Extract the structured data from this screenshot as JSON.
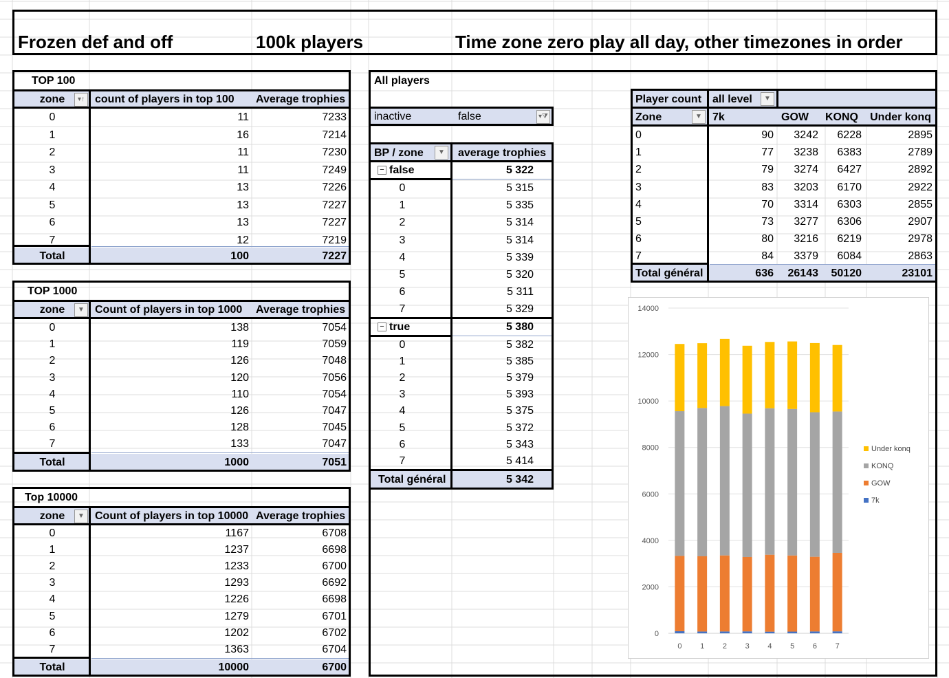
{
  "header": {
    "title_left": "Frozen def and off",
    "title_mid": "100k players",
    "title_right": "Time zone zero play all day, other timezones in order"
  },
  "top100": {
    "title": "TOP 100",
    "col_zone": "zone",
    "col_count": "count of players in top 100",
    "col_avg": "Average trophies",
    "rows": [
      {
        "zone": "0",
        "count": "11",
        "avg": "7233"
      },
      {
        "zone": "1",
        "count": "16",
        "avg": "7214"
      },
      {
        "zone": "2",
        "count": "11",
        "avg": "7230"
      },
      {
        "zone": "3",
        "count": "11",
        "avg": "7249"
      },
      {
        "zone": "4",
        "count": "13",
        "avg": "7226"
      },
      {
        "zone": "5",
        "count": "13",
        "avg": "7227"
      },
      {
        "zone": "6",
        "count": "13",
        "avg": "7227"
      },
      {
        "zone": "7",
        "count": "12",
        "avg": "7219"
      }
    ],
    "total_label": "Total",
    "total_count": "100",
    "total_avg": "7227"
  },
  "top1000": {
    "title": "TOP 1000",
    "col_zone": "zone",
    "col_count": "Count of players in top 1000",
    "col_avg": "Average trophies",
    "rows": [
      {
        "zone": "0",
        "count": "138",
        "avg": "7054"
      },
      {
        "zone": "1",
        "count": "119",
        "avg": "7059"
      },
      {
        "zone": "2",
        "count": "126",
        "avg": "7048"
      },
      {
        "zone": "3",
        "count": "120",
        "avg": "7056"
      },
      {
        "zone": "4",
        "count": "110",
        "avg": "7054"
      },
      {
        "zone": "5",
        "count": "126",
        "avg": "7047"
      },
      {
        "zone": "6",
        "count": "128",
        "avg": "7045"
      },
      {
        "zone": "7",
        "count": "133",
        "avg": "7047"
      }
    ],
    "total_label": "Total",
    "total_count": "1000",
    "total_avg": "7051"
  },
  "top10000": {
    "title": "Top 10000",
    "col_zone": "zone",
    "col_count": "Count of players in top 10000",
    "col_avg": "Average trophies",
    "rows": [
      {
        "zone": "0",
        "count": "1167",
        "avg": "6708"
      },
      {
        "zone": "1",
        "count": "1237",
        "avg": "6698"
      },
      {
        "zone": "2",
        "count": "1233",
        "avg": "6700"
      },
      {
        "zone": "3",
        "count": "1293",
        "avg": "6692"
      },
      {
        "zone": "4",
        "count": "1226",
        "avg": "6698"
      },
      {
        "zone": "5",
        "count": "1279",
        "avg": "6701"
      },
      {
        "zone": "6",
        "count": "1202",
        "avg": "6702"
      },
      {
        "zone": "7",
        "count": "1363",
        "avg": "6704"
      }
    ],
    "total_label": "Total",
    "total_count": "10000",
    "total_avg": "6700"
  },
  "allplayers": {
    "title": "All players",
    "filter_label": "inactive",
    "filter_value": "false",
    "col_bp": "BP / zone",
    "col_avg": "average trophies",
    "group_false": {
      "label": "false",
      "avg": "5 322",
      "rows": [
        {
          "zone": "0",
          "avg": "5 315"
        },
        {
          "zone": "1",
          "avg": "5 335"
        },
        {
          "zone": "2",
          "avg": "5 314"
        },
        {
          "zone": "3",
          "avg": "5 314"
        },
        {
          "zone": "4",
          "avg": "5 339"
        },
        {
          "zone": "5",
          "avg": "5 320"
        },
        {
          "zone": "6",
          "avg": "5 311"
        },
        {
          "zone": "7",
          "avg": "5 329"
        }
      ]
    },
    "group_true": {
      "label": "true",
      "avg": "5 380",
      "rows": [
        {
          "zone": "0",
          "avg": "5 382"
        },
        {
          "zone": "1",
          "avg": "5 385"
        },
        {
          "zone": "2",
          "avg": "5 379"
        },
        {
          "zone": "3",
          "avg": "5 393"
        },
        {
          "zone": "4",
          "avg": "5 375"
        },
        {
          "zone": "5",
          "avg": "5 372"
        },
        {
          "zone": "6",
          "avg": "5 343"
        },
        {
          "zone": "7",
          "avg": "5 414"
        }
      ]
    },
    "total_label": "Total général",
    "total_avg": "5 342"
  },
  "playercount": {
    "title": "Player count",
    "filter_value": "all level",
    "col_zone": "Zone",
    "col_7k": "7k",
    "col_gow": "GOW",
    "col_konq": "KONQ",
    "col_under": "Under konq",
    "rows": [
      {
        "zone": "0",
        "k7": "90",
        "gow": "3242",
        "konq": "6228",
        "under": "2895"
      },
      {
        "zone": "1",
        "k7": "77",
        "gow": "3238",
        "konq": "6383",
        "under": "2789"
      },
      {
        "zone": "2",
        "k7": "79",
        "gow": "3274",
        "konq": "6427",
        "under": "2892"
      },
      {
        "zone": "3",
        "k7": "83",
        "gow": "3203",
        "konq": "6170",
        "under": "2922"
      },
      {
        "zone": "4",
        "k7": "70",
        "gow": "3314",
        "konq": "6303",
        "under": "2855"
      },
      {
        "zone": "5",
        "k7": "73",
        "gow": "3277",
        "konq": "6306",
        "under": "2907"
      },
      {
        "zone": "6",
        "k7": "80",
        "gow": "3216",
        "konq": "6219",
        "under": "2978"
      },
      {
        "zone": "7",
        "k7": "84",
        "gow": "3379",
        "konq": "6084",
        "under": "2863"
      }
    ],
    "total_label": "Total général",
    "total_7k": "636",
    "total_gow": "26143",
    "total_konq": "50120",
    "total_under": "23101"
  },
  "icons": {
    "dropdown": "dropdown-arrow-icon",
    "filter": "filter-icon",
    "sort": "sort-icon",
    "collapse": "collapse-minus-icon"
  },
  "chart_data": {
    "type": "bar",
    "stacked": true,
    "categories": [
      "0",
      "1",
      "2",
      "3",
      "4",
      "5",
      "6",
      "7"
    ],
    "series": [
      {
        "name": "7k",
        "color": "#4472c4",
        "values": [
          90,
          77,
          79,
          83,
          70,
          73,
          80,
          84
        ]
      },
      {
        "name": "GOW",
        "color": "#ed7d31",
        "values": [
          3242,
          3238,
          3274,
          3203,
          3314,
          3277,
          3216,
          3379
        ]
      },
      {
        "name": "KONQ",
        "color": "#a5a5a5",
        "values": [
          6228,
          6383,
          6427,
          6170,
          6303,
          6306,
          6219,
          6084
        ]
      },
      {
        "name": "Under konq",
        "color": "#ffc000",
        "values": [
          2895,
          2789,
          2892,
          2922,
          2855,
          2907,
          2978,
          2863
        ]
      }
    ],
    "ylim": [
      0,
      14000
    ],
    "yticks": [
      "0",
      "2000",
      "4000",
      "6000",
      "8000",
      "10000",
      "12000",
      "14000"
    ],
    "grid": true,
    "legend_position": "right"
  }
}
